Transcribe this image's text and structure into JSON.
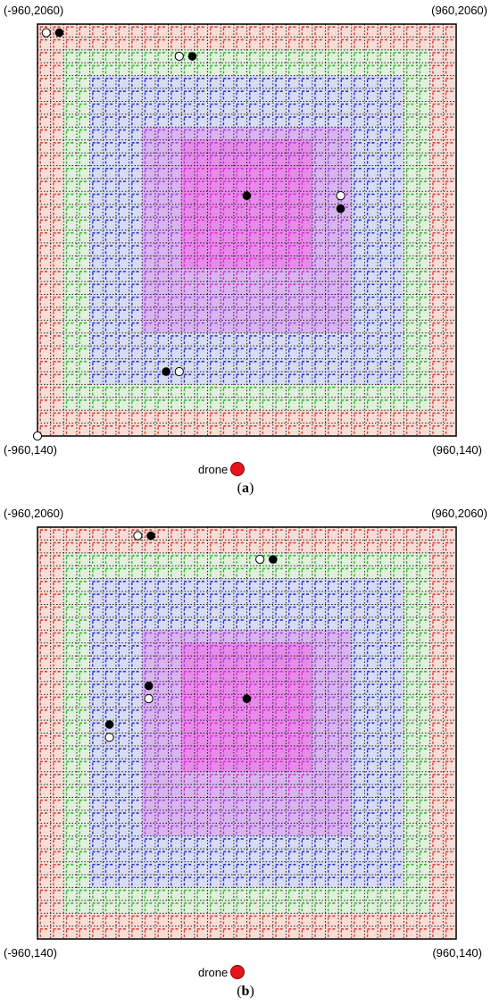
{
  "figure": {
    "panels": [
      {
        "id": "a",
        "caption_letter": "a",
        "corner_labels": {
          "top_left": "(-960,2060)",
          "top_right": "(960,2060)",
          "bottom_left": "(-960,140)",
          "bottom_right": "(960,140)"
        },
        "drone_label": "drone",
        "open_points": [
          [
            -920,
            2020
          ],
          [
            -310,
            1910
          ],
          [
            -310,
            440
          ],
          [
            430,
            1260
          ],
          [
            -960,
            140
          ]
        ],
        "filled_points": [
          [
            -860,
            2020
          ],
          [
            -250,
            1910
          ],
          [
            -370,
            440
          ],
          [
            0,
            1260
          ],
          [
            430,
            1200
          ]
        ]
      },
      {
        "id": "b",
        "caption_letter": "b",
        "corner_labels": {
          "top_left": "(-960,2060)",
          "top_right": "(960,2060)",
          "bottom_left": "(-960,140)",
          "bottom_right": "(960,140)"
        },
        "drone_label": "drone",
        "open_points": [
          [
            -500,
            2020
          ],
          [
            60,
            1910
          ],
          [
            -450,
            1260
          ],
          [
            -630,
            1080
          ]
        ],
        "filled_points": [
          [
            -440,
            2020
          ],
          [
            120,
            1910
          ],
          [
            -450,
            1320
          ],
          [
            -630,
            1140
          ],
          [
            0,
            1260
          ]
        ]
      }
    ],
    "layer_colors": {
      "outer": "#e53935",
      "second": "#2bbd2b",
      "third": "#2430e0",
      "fourth": "#a43ee6",
      "inner": "#e526e0"
    },
    "layer_fills": {
      "outer": "#f7ddd6",
      "second": "#e1f0dc",
      "third": "#d8dcf3",
      "fourth": "#d9b5ef",
      "inner": "#e78be9"
    }
  }
}
